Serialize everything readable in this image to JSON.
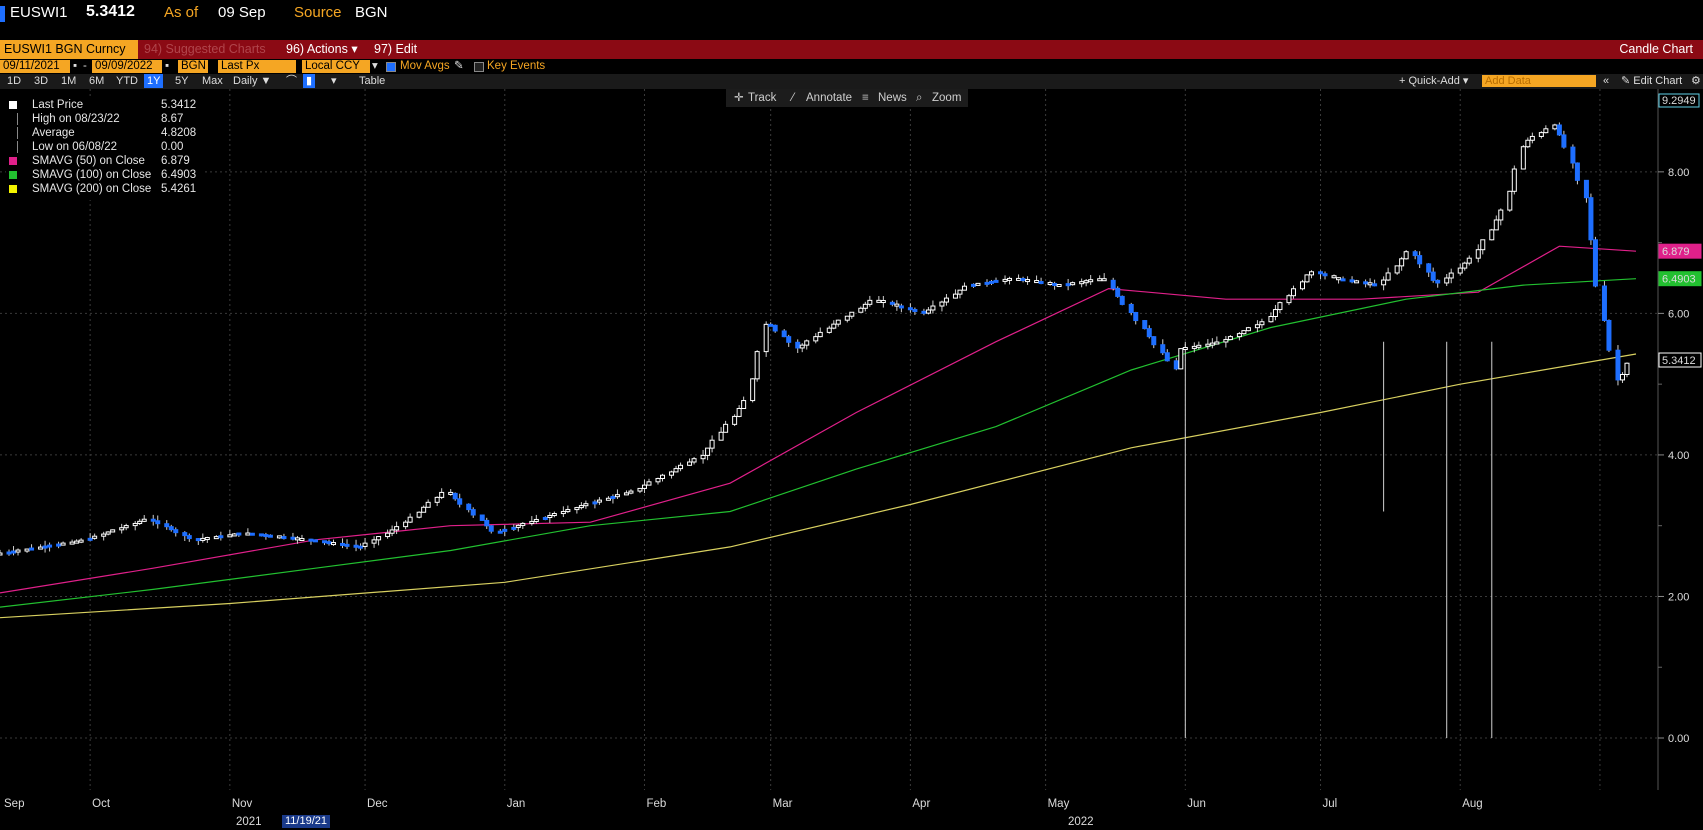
{
  "header": {
    "ticker": "EUSWI1",
    "last": "5.3412",
    "asof_label": "As of",
    "asof_date": "09 Sep",
    "source_label": "Source",
    "source": "BGN"
  },
  "redbar": {
    "security": "EUSWI1 BGN Curncy",
    "suggested": "94) Suggested Charts",
    "actions": "96) Actions ▾",
    "edit": "97) Edit ▾",
    "chart_type": "Candle Chart"
  },
  "controls": {
    "start_date": "09/11/2021",
    "end_date": "09/09/2022",
    "source": "BGN",
    "field": "Last Px",
    "currency": "Local CCY",
    "mov_avgs": "Mov Avgs",
    "key_events": "Key Events"
  },
  "periods": [
    "1D",
    "3D",
    "1M",
    "6M",
    "YTD",
    "1Y",
    "5Y",
    "Max"
  ],
  "frequency": "Daily ▼",
  "table_label": "Table",
  "quick_add": "+ Quick-Add ▾",
  "add_data_placeholder": "Add Data",
  "edit_chart": "✎ Edit Chart",
  "tools": {
    "track": "Track",
    "annotate": "Annotate",
    "news": "News",
    "zoom": "Zoom"
  },
  "legend": [
    {
      "label": "Last Price",
      "value": "5.3412",
      "color": "#ffffff"
    },
    {
      "label": "High on 08/23/22",
      "value": "8.67",
      "color": ""
    },
    {
      "label": "Average",
      "value": "4.8208",
      "color": ""
    },
    {
      "label": "Low on 06/08/22",
      "value": "0.00",
      "color": ""
    },
    {
      "label": "SMAVG (50)  on Close",
      "value": "6.879",
      "color": "#e0208a"
    },
    {
      "label": "SMAVG (100)  on Close",
      "value": "6.4903",
      "color": "#22c030"
    },
    {
      "label": "SMAVG (200)  on Close",
      "value": "5.4261",
      "color": "#f4f400"
    }
  ],
  "x_axis": {
    "months": [
      "Sep",
      "Oct",
      "Nov",
      "Dec",
      "Jan",
      "Feb",
      "Mar",
      "Apr",
      "May",
      "Jun",
      "Jul",
      "Aug"
    ],
    "years": [
      "2021",
      "2022"
    ],
    "flag_date": "11/19/21"
  },
  "chart_data": {
    "type": "line",
    "yticks": [
      "0.00",
      "2.00",
      "4.00",
      "6.00",
      "8.00"
    ],
    "ylim": [
      0,
      9.1
    ],
    "top_label": "9.2949",
    "right_labels": [
      {
        "text": "6.879",
        "value": 6.879,
        "color": "#e0208a"
      },
      {
        "text": "6.4903",
        "value": 6.4903,
        "color": "#22c030"
      },
      {
        "text": "5.3412",
        "value": 5.3412,
        "color": "#ffffff"
      }
    ],
    "x_start": "2021-09-11",
    "x_end": "2022-09-09",
    "series": [
      {
        "name": "Last Price",
        "color": "#ffffff",
        "down_color": "#1e6fff",
        "x": [
          "2021-09-11",
          "2021-10-01",
          "2021-10-15",
          "2021-10-25",
          "2021-11-05",
          "2021-11-20",
          "2021-12-01",
          "2021-12-10",
          "2021-12-20",
          "2021-12-31",
          "2022-01-20",
          "2022-01-31",
          "2022-02-15",
          "2022-02-25",
          "2022-03-01",
          "2022-03-08",
          "2022-03-15",
          "2022-03-25",
          "2022-04-05",
          "2022-04-15",
          "2022-04-25",
          "2022-05-05",
          "2022-05-15",
          "2022-05-31",
          "2022-06-01",
          "2022-06-10",
          "2022-06-20",
          "2022-06-30",
          "2022-07-05",
          "2022-07-15",
          "2022-07-22",
          "2022-07-28",
          "2022-08-05",
          "2022-08-12",
          "2022-08-16",
          "2022-08-23",
          "2022-08-26",
          "2022-08-30",
          "2022-09-02",
          "2022-09-06",
          "2022-09-09"
        ],
        "values": [
          2.6,
          2.8,
          3.1,
          2.8,
          2.9,
          2.8,
          2.7,
          3.0,
          3.5,
          2.9,
          3.3,
          3.5,
          4.0,
          4.8,
          5.9,
          5.5,
          5.8,
          6.2,
          6.0,
          6.4,
          6.5,
          6.4,
          6.5,
          5.2,
          5.5,
          5.6,
          5.9,
          6.6,
          6.5,
          6.4,
          6.9,
          6.4,
          6.8,
          7.5,
          8.4,
          8.67,
          8.3,
          7.6,
          6.2,
          5.0,
          5.3412
        ]
      },
      {
        "name": "SMAVG (50)  on Close",
        "color": "#e0208a",
        "x": [
          "2021-09-11",
          "2021-10-15",
          "2021-11-20",
          "2021-12-20",
          "2022-01-20",
          "2022-02-20",
          "2022-03-20",
          "2022-04-20",
          "2022-05-15",
          "2022-06-10",
          "2022-07-10",
          "2022-08-05",
          "2022-08-23",
          "2022-09-09"
        ],
        "values": [
          2.05,
          2.4,
          2.8,
          3.0,
          3.05,
          3.6,
          4.6,
          5.6,
          6.35,
          6.2,
          6.2,
          6.3,
          6.95,
          6.879
        ]
      },
      {
        "name": "SMAVG (100)  on Close",
        "color": "#22c030",
        "x": [
          "2021-09-11",
          "2021-10-15",
          "2021-11-20",
          "2021-12-20",
          "2022-01-20",
          "2022-02-20",
          "2022-03-20",
          "2022-04-20",
          "2022-05-20",
          "2022-06-20",
          "2022-07-20",
          "2022-08-15",
          "2022-09-09"
        ],
        "values": [
          1.85,
          2.1,
          2.4,
          2.65,
          3.0,
          3.2,
          3.8,
          4.4,
          5.2,
          5.8,
          6.2,
          6.4,
          6.4903
        ]
      },
      {
        "name": "SMAVG (200)  on Close",
        "color": "#d8d060",
        "x": [
          "2021-09-11",
          "2021-11-01",
          "2022-01-01",
          "2022-02-20",
          "2022-04-01",
          "2022-05-20",
          "2022-07-01",
          "2022-08-01",
          "2022-09-09"
        ],
        "values": [
          1.7,
          1.9,
          2.2,
          2.7,
          3.3,
          4.1,
          4.6,
          5.0,
          5.4261
        ]
      }
    ],
    "spikes": [
      {
        "x": "2022-06-01",
        "low": 0.0
      },
      {
        "x": "2022-07-15",
        "low": 3.2
      },
      {
        "x": "2022-07-29",
        "low": 0.0
      },
      {
        "x": "2022-08-08",
        "low": 0.0
      }
    ]
  }
}
